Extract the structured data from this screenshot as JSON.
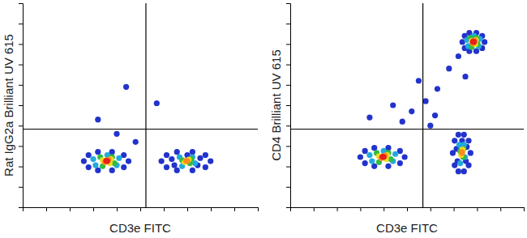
{
  "chart_data": [
    {
      "type": "scatter",
      "marker": "circle",
      "x_label": "CD3e FITC",
      "y_label": "Rat IgG2a Brilliant UV 615",
      "xlim": [
        0,
        100
      ],
      "ylim": [
        0,
        100
      ],
      "xticks": [
        0,
        10,
        20,
        30,
        40,
        50,
        60,
        70,
        80,
        90,
        100
      ],
      "yticks": [
        0,
        10,
        20,
        30,
        40,
        50,
        60,
        70,
        80,
        90,
        100
      ],
      "tick_labels": false,
      "quadrant": {
        "x": 52.4,
        "y": 38.3
      },
      "x": [
        44,
        32,
        57,
        40,
        48,
        26,
        28,
        28,
        32,
        32,
        38,
        38,
        43,
        43,
        45,
        30,
        31,
        36,
        40,
        41,
        33,
        34,
        38,
        39,
        34,
        37,
        37.5,
        35,
        36.5,
        35.5,
        36,
        59,
        61.2,
        61.2,
        65.6,
        65.6,
        72.2,
        72.2,
        77.7,
        77.7,
        79.9,
        63.4,
        64.5,
        70,
        74.4,
        75.5,
        66.7,
        67.8,
        72.2,
        73.3,
        67.8,
        71.1,
        71.7,
        68.9,
        70.6,
        69.5,
        70
      ],
      "values": [
        59,
        43,
        51,
        36,
        32,
        22.6,
        25.6,
        19.6,
        27.1,
        18.1,
        27.1,
        18.1,
        25.6,
        19.6,
        22.6,
        23.6,
        20.6,
        25.6,
        20.6,
        24.1,
        24.6,
        20.1,
        24.6,
        21.6,
        23.1,
        21.6,
        23.6,
        22.1,
        23.4,
        22.8,
        22.6,
        22.6,
        25.6,
        19.6,
        27.1,
        18.1,
        27.1,
        18.1,
        25.6,
        19.6,
        22.6,
        23.6,
        20.6,
        25.6,
        20.6,
        24.1,
        24.6,
        20.1,
        24.6,
        21.6,
        23.1,
        21.6,
        23.6,
        22.1,
        23.4,
        22.8,
        22.6
      ],
      "colors": [
        "#2233cc",
        "#2233cc",
        "#2233cc",
        "#2233cc",
        "#2233cc",
        "#2233cc",
        "#2233cc",
        "#2233cc",
        "#2233cc",
        "#2233cc",
        "#2233cc",
        "#2233cc",
        "#2233cc",
        "#2233cc",
        "#2233cc",
        "#22aadd",
        "#22aadd",
        "#22aadd",
        "#22aadd",
        "#22aadd",
        "#33bb44",
        "#33bb44",
        "#33bb44",
        "#33bb44",
        "#eedd22",
        "#eedd22",
        "#eedd22",
        "#ff8c1a",
        "#ff8c1a",
        "#e8201a",
        "#e8201a",
        "#2233cc",
        "#2233cc",
        "#2233cc",
        "#2233cc",
        "#2233cc",
        "#2233cc",
        "#2233cc",
        "#2233cc",
        "#2233cc",
        "#2233cc",
        "#2233cc",
        "#2233cc",
        "#2233cc",
        "#2233cc",
        "#2233cc",
        "#22aadd",
        "#22aadd",
        "#22aadd",
        "#22aadd",
        "#33bb44",
        "#33bb44",
        "#33bb44",
        "#eedd22",
        "#eedd22",
        "#ff8c1a",
        "#ff8c1a"
      ]
    },
    {
      "type": "scatter",
      "marker": "circle",
      "x_label": "CD3e FITC",
      "y_label": "CD4 Brilliant UV 615",
      "xlim": [
        0,
        100
      ],
      "ylim": [
        0,
        100
      ],
      "xticks": [
        0,
        10,
        20,
        30,
        40,
        50,
        60,
        70,
        80,
        90,
        100
      ],
      "yticks": [
        0,
        10,
        20,
        30,
        40,
        50,
        60,
        70,
        80,
        90,
        100
      ],
      "tick_labels": false,
      "quadrant": {
        "x": 56.8,
        "y": 38.3
      },
      "x": [
        52,
        63,
        44,
        60,
        68,
        55,
        48,
        72,
        62,
        58,
        34,
        75,
        30,
        32,
        32,
        36,
        36,
        42,
        42,
        47,
        47,
        49,
        34,
        35,
        40,
        44,
        45,
        37,
        38,
        42,
        43,
        38,
        41,
        41.5,
        39,
        40.5,
        39.5,
        40,
        69.6,
        70.4,
        70.4,
        72,
        72,
        74.4,
        74.4,
        76.4,
        76.4,
        77.2,
        71.2,
        71.6,
        73.6,
        75.2,
        75.6,
        72.4,
        72.8,
        74.4,
        74.8,
        72.8,
        74,
        74.2,
        73.2,
        73.8,
        73.4,
        73.6,
        73.7,
        74.7,
        74.7,
        76.7,
        76.7,
        79.7,
        79.7,
        82.2,
        82.2,
        83.2,
        75.7,
        76.2,
        78.7,
        80.7,
        81.2,
        77.2,
        77.7,
        79.7,
        80.2,
        77.7,
        79.2,
        79.5,
        78.2,
        79,
        78.2,
        78.7
      ],
      "values": [
        47,
        58,
        50,
        40,
        68,
        62,
        42,
        74,
        45,
        52,
        44,
        64,
        24.6,
        27.6,
        21.6,
        29.1,
        20.1,
        29.1,
        20.1,
        27.6,
        21.6,
        24.6,
        25.6,
        22.6,
        27.6,
        22.6,
        26.1,
        26.6,
        22.1,
        26.6,
        23.6,
        25.1,
        23.6,
        25.6,
        24.1,
        25.4,
        24.8,
        24.6,
        26.6,
        32.6,
        20.6,
        35.6,
        17.6,
        35.6,
        17.6,
        32.6,
        20.6,
        26.6,
        28.6,
        22.6,
        32.6,
        22.6,
        29.6,
        30.6,
        21.6,
        30.6,
        24.6,
        27.6,
        24.6,
        28.6,
        25.6,
        28.2,
        27,
        26.6,
        81,
        84,
        78,
        85.5,
        76.5,
        85.5,
        76.5,
        84,
        78,
        81,
        82,
        79,
        84,
        79,
        82.5,
        83,
        78.5,
        83,
        80,
        81.5,
        80,
        82,
        80.5,
        81.8,
        81.2,
        81
      ],
      "colors": [
        "#2233cc",
        "#2233cc",
        "#2233cc",
        "#2233cc",
        "#2233cc",
        "#2233cc",
        "#2233cc",
        "#2233cc",
        "#2233cc",
        "#2233cc",
        "#2233cc",
        "#2233cc",
        "#2233cc",
        "#2233cc",
        "#2233cc",
        "#2233cc",
        "#2233cc",
        "#2233cc",
        "#2233cc",
        "#2233cc",
        "#2233cc",
        "#2233cc",
        "#22aadd",
        "#22aadd",
        "#22aadd",
        "#22aadd",
        "#22aadd",
        "#33bb44",
        "#33bb44",
        "#33bb44",
        "#33bb44",
        "#eedd22",
        "#eedd22",
        "#eedd22",
        "#ff8c1a",
        "#ff8c1a",
        "#e8201a",
        "#e8201a",
        "#2233cc",
        "#2233cc",
        "#2233cc",
        "#2233cc",
        "#2233cc",
        "#2233cc",
        "#2233cc",
        "#2233cc",
        "#2233cc",
        "#2233cc",
        "#2233cc",
        "#2233cc",
        "#2233cc",
        "#2233cc",
        "#2233cc",
        "#22aadd",
        "#22aadd",
        "#22aadd",
        "#22aadd",
        "#33bb44",
        "#33bb44",
        "#33bb44",
        "#eedd22",
        "#eedd22",
        "#ff8c1a",
        "#ff8c1a",
        "#2233cc",
        "#2233cc",
        "#2233cc",
        "#2233cc",
        "#2233cc",
        "#2233cc",
        "#2233cc",
        "#2233cc",
        "#2233cc",
        "#2233cc",
        "#22aadd",
        "#22aadd",
        "#22aadd",
        "#22aadd",
        "#22aadd",
        "#33bb44",
        "#33bb44",
        "#33bb44",
        "#33bb44",
        "#eedd22",
        "#eedd22",
        "#eedd22",
        "#ff8c1a",
        "#ff8c1a",
        "#e8201a",
        "#e8201a"
      ]
    }
  ]
}
